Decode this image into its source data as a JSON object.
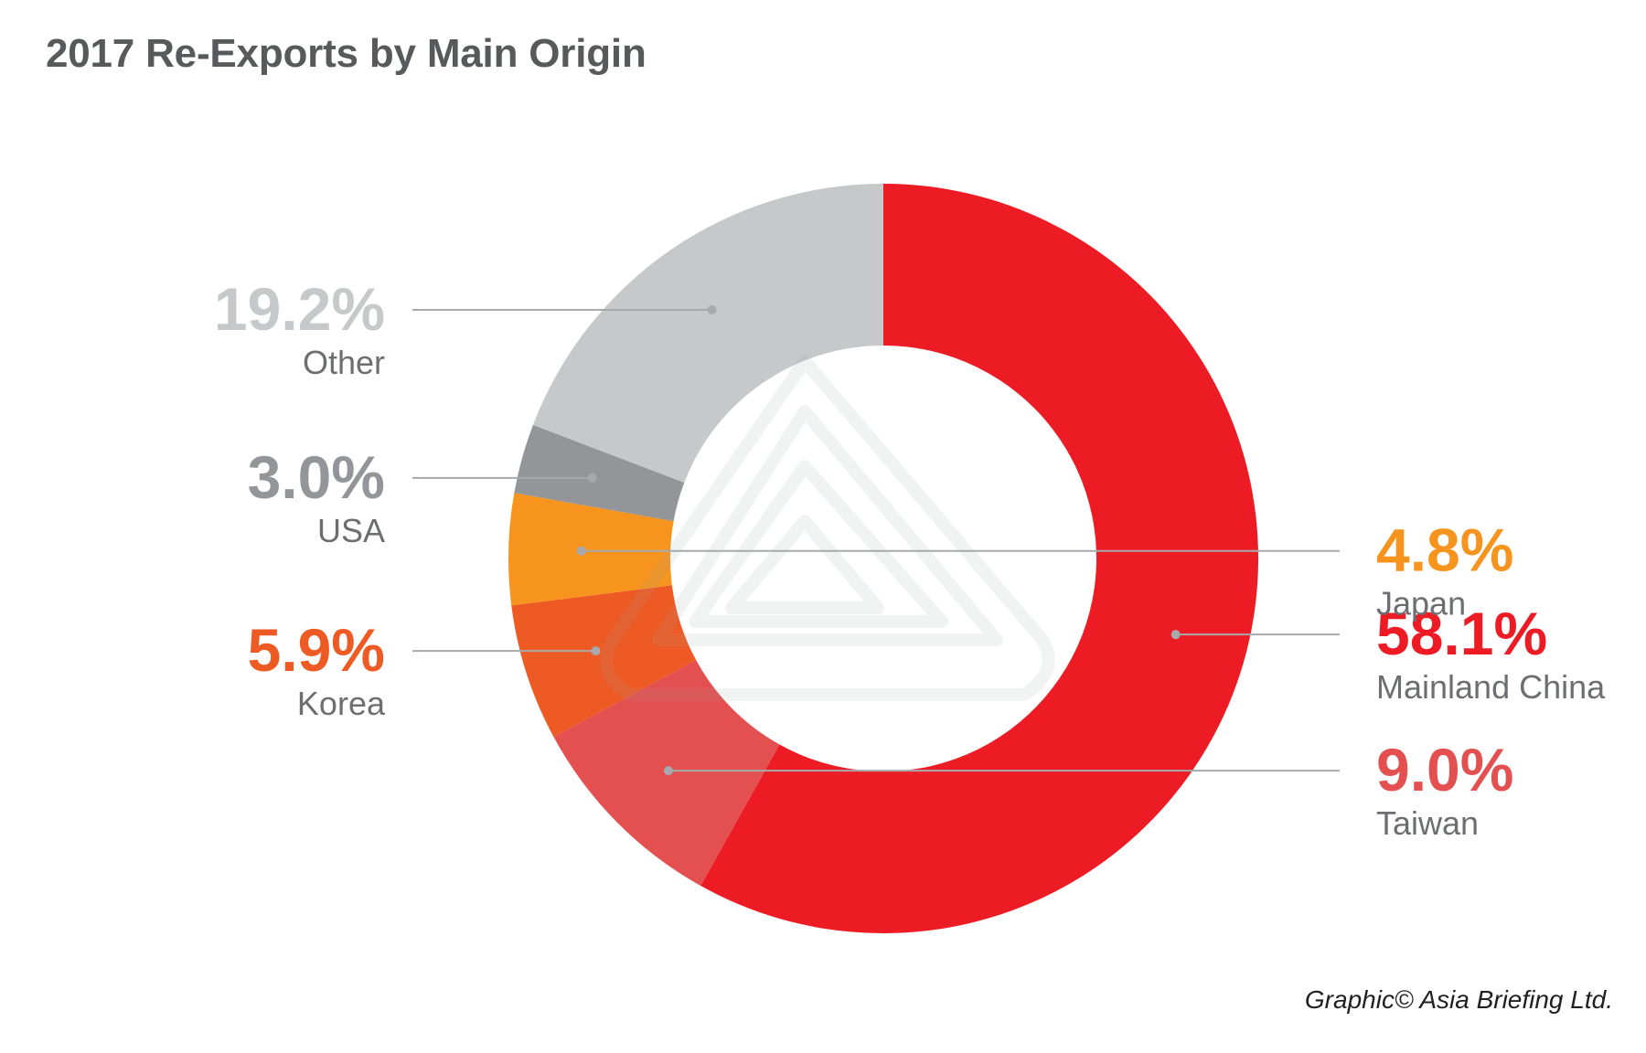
{
  "title": "2017 Re-Exports by Main Origin",
  "credit": "Graphic© Asia Briefing Ltd.",
  "chart_data": {
    "type": "pie",
    "donut": true,
    "title": "2017 Re-Exports by Main Origin",
    "slices": [
      {
        "name": "Mainland China",
        "value": 58.1,
        "label": "58.1%",
        "color": "#ed1c24",
        "label_color": "#ed1c24",
        "side": "right"
      },
      {
        "name": "Taiwan",
        "value": 9.0,
        "label": "9.0%",
        "color": "#e45050",
        "label_color": "#e45050",
        "side": "right"
      },
      {
        "name": "Korea",
        "value": 5.9,
        "label": "5.9%",
        "color": "#ee5a24",
        "label_color": "#ee5a24",
        "side": "left"
      },
      {
        "name": "Japan",
        "value": 4.8,
        "label": "4.8%",
        "color": "#f7941d",
        "label_color": "#f7941d",
        "side": "right"
      },
      {
        "name": "USA",
        "value": 3.0,
        "label": "3.0%",
        "color": "#939598",
        "label_color": "#939598",
        "side": "left"
      },
      {
        "name": "Other",
        "value": 19.2,
        "label": "19.2%",
        "color": "#c7c8ca",
        "label_color": "#c7c8ca",
        "side": "left"
      }
    ],
    "leader_line_color": "#a7a9ac",
    "legend": "none"
  }
}
